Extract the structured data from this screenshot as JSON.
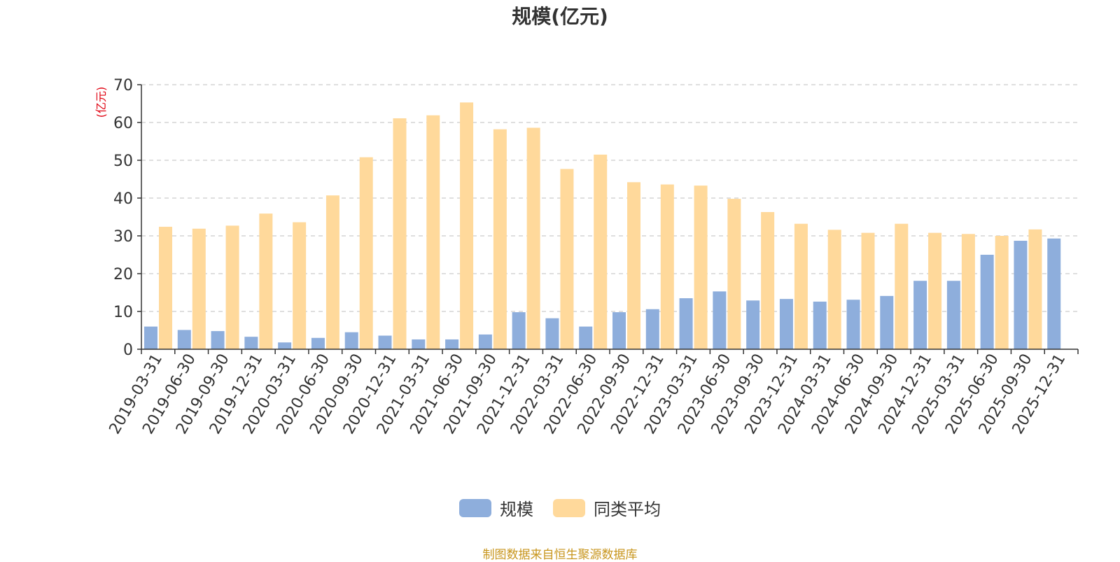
{
  "chart_data": {
    "type": "bar",
    "title": "规模(亿元)",
    "ylabel": "(亿元)",
    "xlabel": "",
    "ylim": [
      0,
      70
    ],
    "yticks": [
      0,
      10,
      20,
      30,
      40,
      50,
      60,
      70
    ],
    "grid": true,
    "legend_position": "bottom-center",
    "categories": [
      "2019-03-31",
      "2019-06-30",
      "2019-09-30",
      "2019-12-31",
      "2020-03-31",
      "2020-06-30",
      "2020-09-30",
      "2020-12-31",
      "2021-03-31",
      "2021-06-30",
      "2021-09-30",
      "2021-12-31",
      "2022-03-31",
      "2022-06-30",
      "2022-09-30",
      "2022-12-31",
      "2023-03-31",
      "2023-06-30",
      "2023-09-30",
      "2023-12-31",
      "2024-03-31",
      "2024-06-30",
      "2024-09-30",
      "2024-12-31",
      "2025-03-31",
      "2025-06-30",
      "2025-09-30",
      "2025-12-31"
    ],
    "series": [
      {
        "name": "规模",
        "color": "#8eaedc",
        "values": [
          6.0,
          5.1,
          4.8,
          3.3,
          1.8,
          3.0,
          4.5,
          3.6,
          2.6,
          2.6,
          3.9,
          9.8,
          8.2,
          6.0,
          9.8,
          10.6,
          13.5,
          15.3,
          12.9,
          13.3,
          12.6,
          13.1,
          14.1,
          18.1,
          18.1,
          25.0,
          28.7,
          29.3
        ]
      },
      {
        "name": "同类平均",
        "color": "#ffd99b",
        "values": [
          32.4,
          31.9,
          32.7,
          35.9,
          33.6,
          40.7,
          50.8,
          61.1,
          61.9,
          65.3,
          58.2,
          58.6,
          47.7,
          51.5,
          44.2,
          43.6,
          43.3,
          39.8,
          36.3,
          33.2,
          31.6,
          30.8,
          33.2,
          30.8,
          30.5,
          30.0,
          31.7,
          null
        ]
      }
    ]
  },
  "footer": {
    "source": "制图数据来自恒生聚源数据库"
  }
}
